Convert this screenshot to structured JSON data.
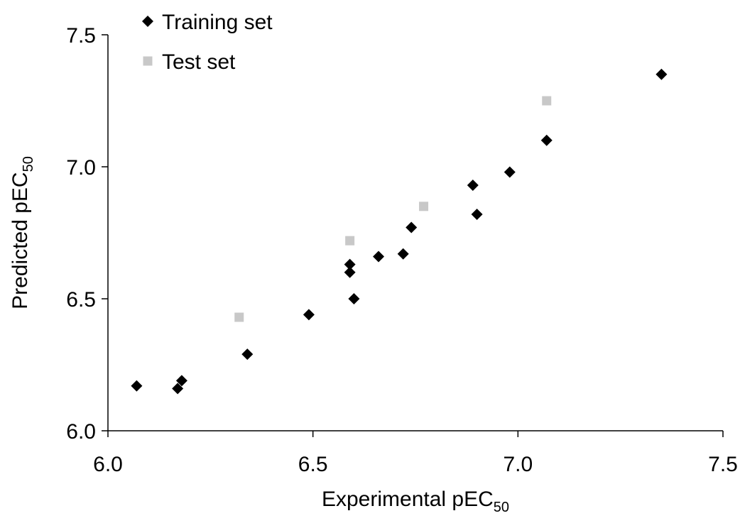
{
  "chart_data": {
    "type": "scatter",
    "title": "",
    "xlabel": {
      "main": "Experimental pEC",
      "sub": "50"
    },
    "ylabel": {
      "main": "Predicted pEC",
      "sub": "50"
    },
    "xlim": [
      6.0,
      7.5
    ],
    "ylim": [
      6.0,
      7.5
    ],
    "xticks": [
      "6.0",
      "6.5",
      "7.0",
      "7.5"
    ],
    "yticks": [
      "6.0",
      "6.5",
      "7.0",
      "7.5"
    ],
    "tick_values": [
      6.0,
      6.5,
      7.0,
      7.5
    ],
    "grid": false,
    "legend": {
      "placement": "top-left",
      "entries": [
        "Training set",
        "Test set"
      ]
    },
    "series": [
      {
        "name": "Training set",
        "marker": "diamond",
        "color": "#000000",
        "points": [
          [
            6.07,
            6.17
          ],
          [
            6.17,
            6.16
          ],
          [
            6.18,
            6.19
          ],
          [
            6.34,
            6.29
          ],
          [
            6.49,
            6.44
          ],
          [
            6.59,
            6.6
          ],
          [
            6.59,
            6.63
          ],
          [
            6.6,
            6.5
          ],
          [
            6.66,
            6.66
          ],
          [
            6.72,
            6.67
          ],
          [
            6.74,
            6.77
          ],
          [
            6.89,
            6.93
          ],
          [
            6.9,
            6.82
          ],
          [
            6.98,
            6.98
          ],
          [
            7.07,
            7.1
          ],
          [
            7.35,
            7.35
          ]
        ]
      },
      {
        "name": "Test set",
        "marker": "square",
        "color": "#c8c8c8",
        "points": [
          [
            6.32,
            6.43
          ],
          [
            6.59,
            6.72
          ],
          [
            6.77,
            6.85
          ],
          [
            7.07,
            7.25
          ]
        ]
      }
    ]
  }
}
